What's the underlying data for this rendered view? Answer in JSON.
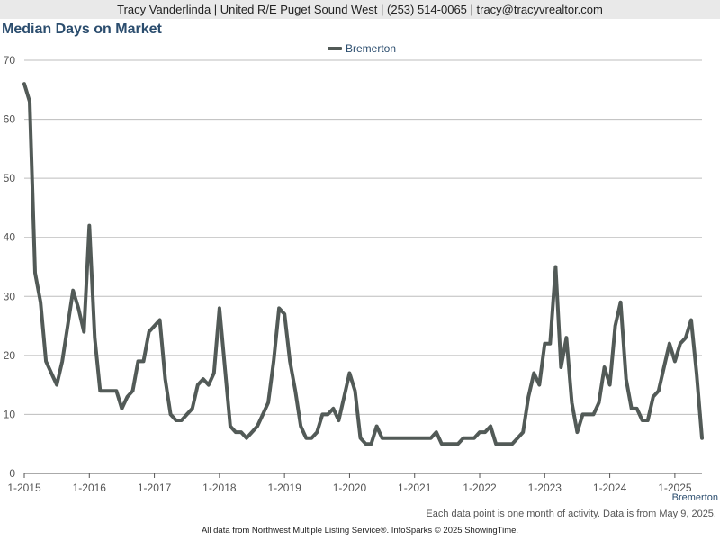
{
  "header": {
    "contact": "Tracy Vanderlinda | United R/E Puget Sound West | (253) 514-0065 | tracy@tracyvrealtor.com"
  },
  "footer": {
    "note": "Each data point is one month of activity. Data is from May 9, 2025.",
    "source": "All data from Northwest Multiple Listing Service®. InfoSparks © 2025 ShowingTime."
  },
  "chart_data": {
    "type": "line",
    "title": "Median Days on Market",
    "xlabel": "",
    "ylabel": "",
    "ylim": [
      0,
      70
    ],
    "yticks": [
      0,
      10,
      20,
      30,
      40,
      50,
      60,
      70
    ],
    "xticks": [
      "1-2015",
      "1-2016",
      "1-2017",
      "1-2018",
      "1-2019",
      "1-2020",
      "1-2021",
      "1-2022",
      "1-2023",
      "1-2024",
      "1-2025"
    ],
    "x_start": "2015-01",
    "x_end": "2025-04",
    "grid": true,
    "legend": "top-center",
    "colors": {
      "line": "#525a57",
      "grid": "#bdbdbd",
      "axis": "#555555",
      "label": "#2b4d6e"
    },
    "series": [
      {
        "name": "Bremerton",
        "values": [
          66,
          63,
          34,
          29,
          19,
          17,
          15,
          19,
          25,
          31,
          28,
          24,
          42,
          23,
          14,
          14,
          14,
          14,
          11,
          13,
          14,
          19,
          19,
          24,
          25,
          26,
          16,
          10,
          9,
          9,
          10,
          11,
          15,
          16,
          15,
          17,
          28,
          18,
          8,
          7,
          7,
          6,
          7,
          8,
          10,
          12,
          19,
          28,
          27,
          19,
          14,
          8,
          6,
          6,
          7,
          10,
          10,
          11,
          9,
          13,
          17,
          14,
          6,
          5,
          5,
          8,
          6,
          6,
          6,
          6,
          6,
          6,
          6,
          6,
          6,
          6,
          7,
          5,
          5,
          5,
          5,
          6,
          6,
          6,
          7,
          7,
          8,
          5,
          5,
          5,
          5,
          6,
          7,
          13,
          17,
          15,
          22,
          22,
          35,
          18,
          23,
          12,
          7,
          10,
          10,
          10,
          12,
          18,
          15,
          25,
          29,
          16,
          11,
          11,
          9,
          9,
          13,
          14,
          18,
          22,
          19,
          22,
          23,
          26,
          17,
          6
        ]
      }
    ]
  }
}
